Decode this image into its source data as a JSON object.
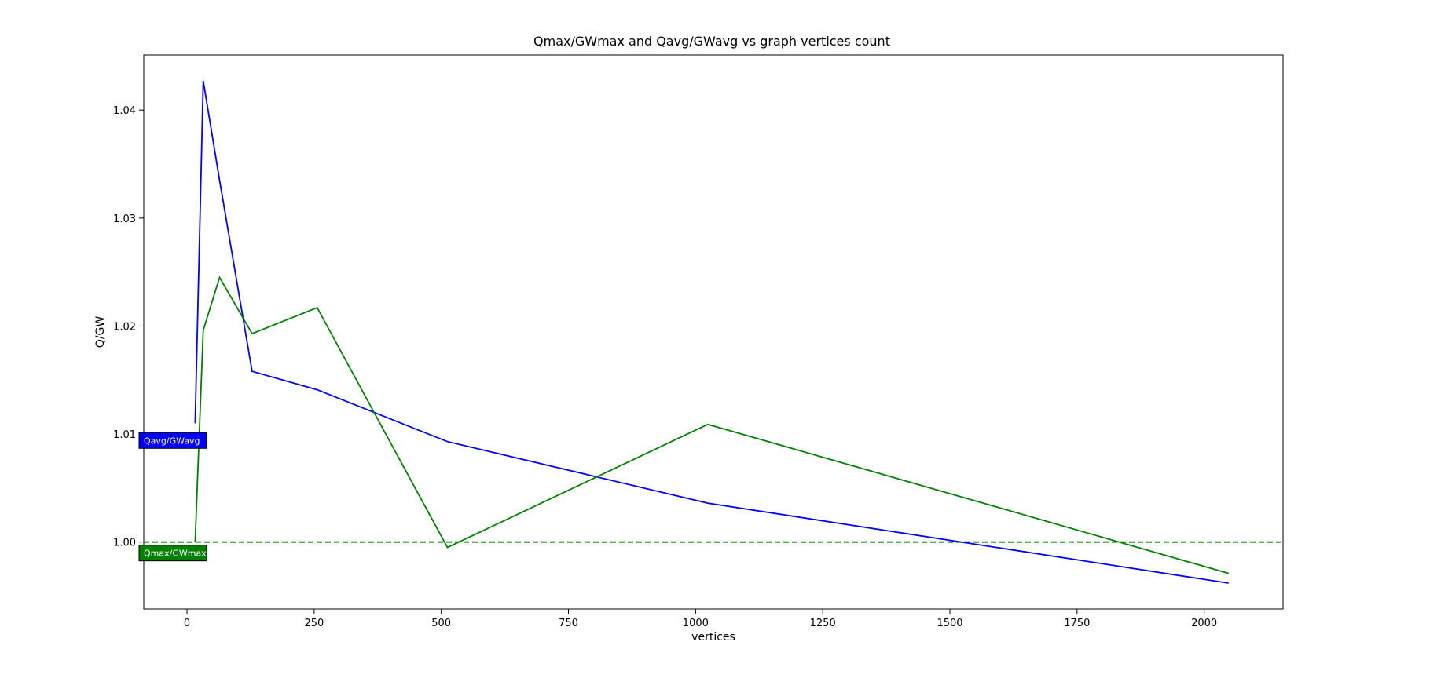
{
  "chart_data": {
    "type": "line",
    "title": "Qmax/GWmax and Qavg/GWavg vs graph vertices count",
    "xlabel": "vertices",
    "ylabel": "Q/GW",
    "xlim": [
      -85,
      2155
    ],
    "ylim": [
      0.9938,
      1.0451
    ],
    "xticks": [
      0,
      250,
      500,
      750,
      1000,
      1250,
      1500,
      1750,
      2000
    ],
    "yticks": [
      1.0,
      1.01,
      1.02,
      1.03,
      1.04
    ],
    "ytick_labels": [
      "1.00",
      "1.01",
      "1.02",
      "1.03",
      "1.04"
    ],
    "grid": false,
    "reference_line": {
      "y": 1.0,
      "style": "dashed",
      "color": "#008000"
    },
    "series": [
      {
        "name": "Qavg/GWavg",
        "color": "#0000ff",
        "x": [
          16,
          32,
          64,
          128,
          256,
          512,
          1024,
          2048
        ],
        "y": [
          1.011,
          1.0427,
          1.0335,
          1.0158,
          1.0141,
          1.0093,
          1.0036,
          0.9962
        ]
      },
      {
        "name": "Qmax/GWmax",
        "color": "#008000",
        "x": [
          16,
          32,
          64,
          128,
          256,
          512,
          1024,
          2048
        ],
        "y": [
          1.0,
          1.0196,
          1.0245,
          1.0193,
          1.0217,
          0.9995,
          1.0109,
          0.9971
        ]
      }
    ]
  }
}
